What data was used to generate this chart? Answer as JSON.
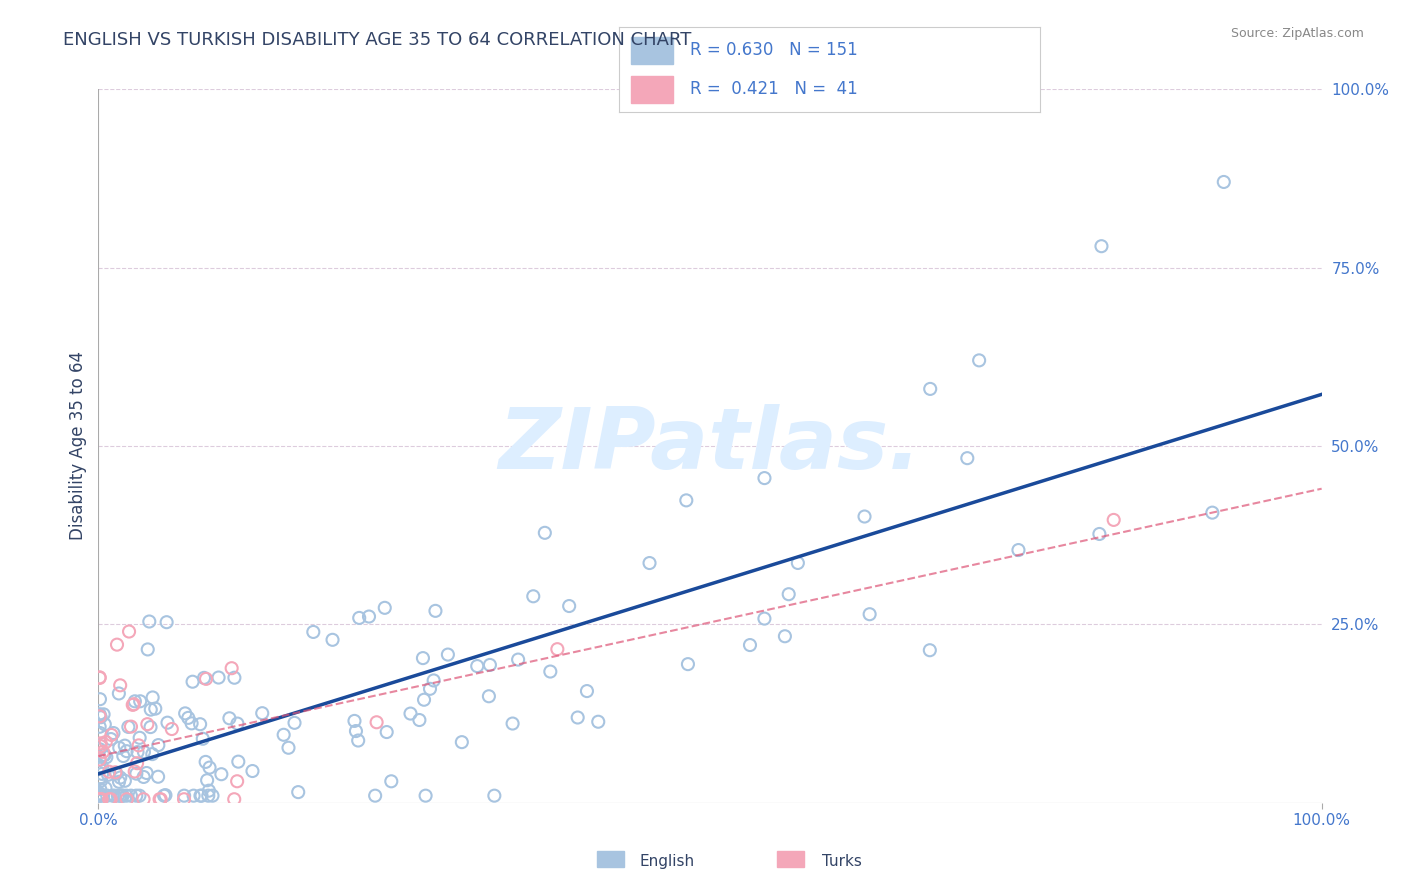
{
  "title": "ENGLISH VS TURKISH DISABILITY AGE 35 TO 64 CORRELATION CHART",
  "source_text": "Source: ZipAtlas.com",
  "ylabel": "Disability Age 35 to 64",
  "legend_english": "English",
  "legend_turks": "Turks",
  "R_english": 0.63,
  "N_english": 151,
  "R_turks": 0.421,
  "N_turks": 41,
  "english_color": "#a8c4e0",
  "turks_color": "#f4a7b9",
  "english_line_color": "#1a4a9a",
  "turks_line_color": "#dd5577",
  "title_color": "#334466",
  "label_color": "#4477cc",
  "watermark_color": "#ddeeff",
  "grid_color": "#ddccdd",
  "background_color": "#ffffff"
}
